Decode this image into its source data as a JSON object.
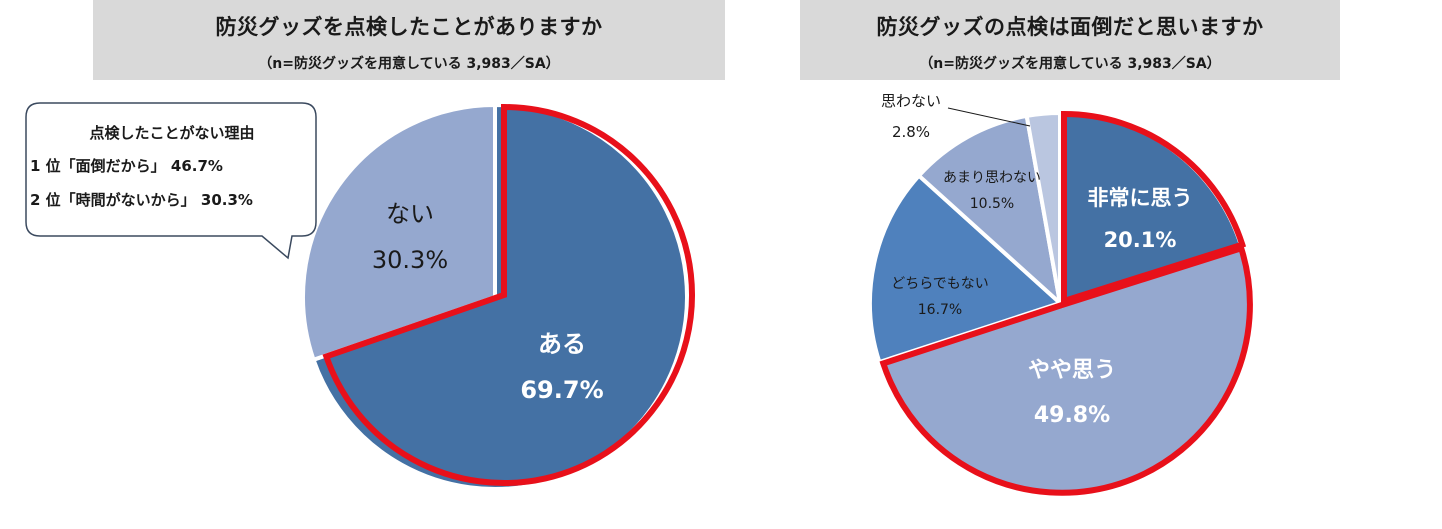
{
  "charts": [
    {
      "title": "防災グッズを点検したことがありますか",
      "subtitle": "（n=防災グッズを用意している 3,983／SA）"
    },
    {
      "title": "防災グッズの点検は面倒だと思いますか",
      "subtitle": "（n=防災グッズを用意している 3,983／SA）"
    }
  ],
  "callout": {
    "heading": "点検したことがない理由",
    "line1": "1 位「面倒だから」 46.7%",
    "line2": "2 位「時間がないから」 30.3%"
  },
  "colors": {
    "dark_blue": "#4471a4",
    "mid_blue": "#4f81bd",
    "light_blue": "#95a8cf",
    "pale_blue": "#bac6e0",
    "highlight_red": "#e8101a"
  },
  "chart_data": [
    {
      "type": "pie",
      "title": "防災グッズを点検したことがありますか",
      "slices": [
        {
          "label": "ある",
          "value": 69.7,
          "value_label": "69.7%",
          "color": "#4471a4",
          "highlighted": true
        },
        {
          "label": "ない",
          "value": 30.3,
          "value_label": "30.3%",
          "color": "#95a8cf",
          "highlighted": false
        }
      ]
    },
    {
      "type": "pie",
      "title": "防災グッズの点検は面倒だと思いますか",
      "slices": [
        {
          "label": "非常に思う",
          "value": 20.1,
          "value_label": "20.1%",
          "color": "#4471a4",
          "highlighted": true
        },
        {
          "label": "やや思う",
          "value": 49.8,
          "value_label": "49.8%",
          "color": "#95a8cf",
          "highlighted": true
        },
        {
          "label": "どちらでもない",
          "value": 16.7,
          "value_label": "16.7%",
          "color": "#4f81bd",
          "highlighted": false
        },
        {
          "label": "あまり思わない",
          "value": 10.5,
          "value_label": "10.5%",
          "color": "#95a8cf",
          "highlighted": false
        },
        {
          "label": "思わない",
          "value": 2.8,
          "value_label": "2.8%",
          "color": "#bac6e0",
          "highlighted": false
        }
      ]
    }
  ]
}
